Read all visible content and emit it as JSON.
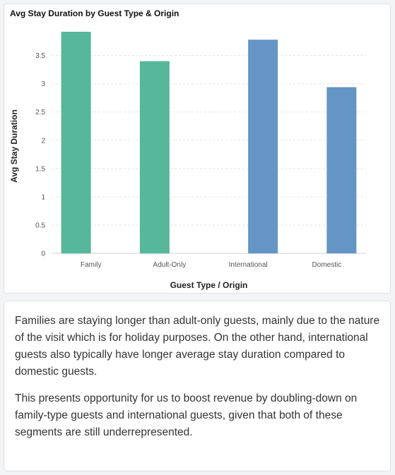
{
  "chart_data": {
    "type": "bar",
    "title": "Avg Stay Duration by Guest Type & Origin",
    "xlabel": "Guest Type / Origin",
    "ylabel": "Avg Stay Duration",
    "categories": [
      "Family",
      "Adult-Only",
      "International",
      "Domestic"
    ],
    "series": [
      {
        "values": [
          3.92,
          3.4,
          null,
          null
        ],
        "color": "#57b79a"
      },
      {
        "values": [
          null,
          null,
          3.78,
          2.94
        ],
        "color": "#6495c4"
      }
    ],
    "yticks": [
      0,
      0.5,
      1,
      1.5,
      2,
      2.5,
      3,
      3.5
    ],
    "ytick_labels": [
      "0",
      "0.5",
      "1",
      "1.5",
      "2",
      "2.5",
      "3",
      "3.5"
    ],
    "ylim": [
      0,
      3.92
    ],
    "grid": true,
    "legend": "none"
  },
  "note": {
    "paragraphs": [
      "Families are staying longer than adult-only guests, mainly due to the nature of the visit which is for holiday purposes. On the other hand, international guests also typically have longer average stay duration compared to domestic guests.",
      "This presents opportunity for us to boost revenue by doubling-down on family-type guests and international guests, given that both of these segments are still underrepresented."
    ]
  }
}
